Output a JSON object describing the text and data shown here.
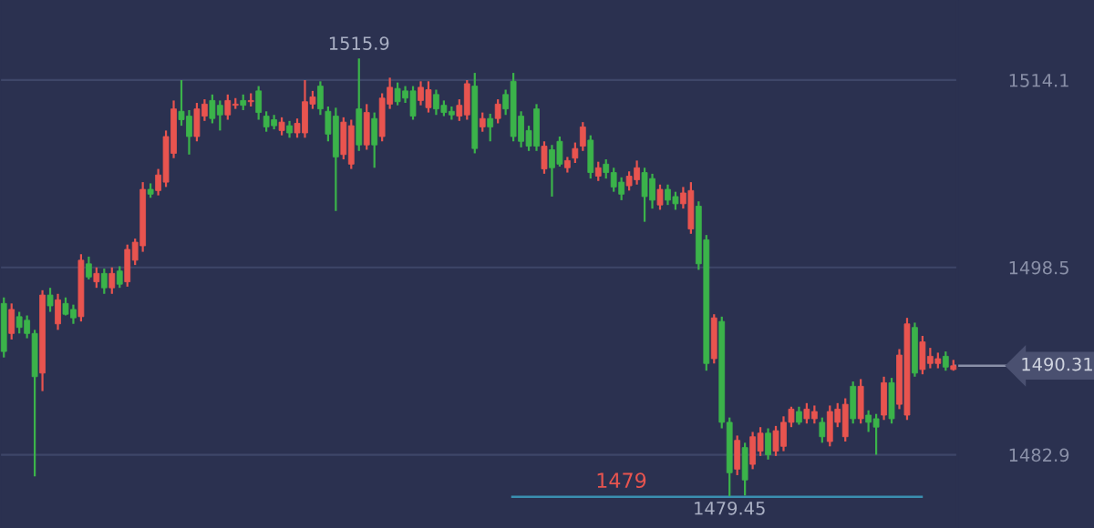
{
  "chart_data": {
    "type": "candlestick",
    "categories": [
      null,
      null,
      null,
      null,
      null,
      null,
      null,
      null,
      null,
      null,
      null,
      null,
      null,
      null,
      null,
      null,
      null,
      null,
      null,
      null,
      null,
      null,
      null,
      null,
      null,
      null,
      null,
      null,
      null,
      null,
      null,
      null,
      null,
      null,
      null,
      null,
      null,
      null,
      null,
      null,
      null,
      null,
      null,
      null,
      null,
      null,
      null,
      null,
      null,
      null,
      null,
      null,
      null,
      null,
      null,
      null,
      null,
      null,
      null,
      null,
      null,
      null,
      null,
      null,
      null,
      null,
      null,
      null,
      null,
      null,
      null,
      null,
      null,
      null,
      null,
      null,
      null,
      null,
      null,
      null,
      null,
      null,
      null,
      null,
      null,
      null,
      null,
      null,
      null,
      null,
      null,
      null,
      null,
      null,
      null,
      null,
      null,
      null,
      null,
      null,
      null,
      null,
      null,
      null,
      null,
      null,
      null,
      null,
      null,
      null,
      null,
      null,
      null,
      null,
      null,
      null,
      null,
      null,
      null,
      null,
      null,
      null,
      null,
      null
    ],
    "ohlc": [
      [
        1495.5,
        1496.0,
        1491.0,
        1491.5
      ],
      [
        1493.0,
        1495.5,
        1492.5,
        1495.0
      ],
      [
        1494.4,
        1494.8,
        1493.0,
        1493.5
      ],
      [
        1494.1,
        1494.5,
        1492.6,
        1493.0
      ],
      [
        1493.0,
        1493.3,
        1481.1,
        1489.4
      ],
      [
        1489.7,
        1496.6,
        1488.2,
        1496.2
      ],
      [
        1496.2,
        1496.8,
        1494.8,
        1495.3
      ],
      [
        1493.8,
        1496.3,
        1493.3,
        1495.8
      ],
      [
        1495.5,
        1496.0,
        1494.5,
        1494.6
      ],
      [
        1495.0,
        1495.4,
        1493.8,
        1494.3
      ],
      [
        1494.4,
        1499.6,
        1494.0,
        1499.1
      ],
      [
        1498.8,
        1499.4,
        1497.5,
        1497.7
      ],
      [
        1497.3,
        1498.5,
        1496.8,
        1498.0
      ],
      [
        1498.0,
        1498.4,
        1496.3,
        1496.8
      ],
      [
        1496.8,
        1498.5,
        1496.3,
        1498.0
      ],
      [
        1498.2,
        1498.6,
        1496.8,
        1497.1
      ],
      [
        1497.3,
        1500.4,
        1496.9,
        1500.0
      ],
      [
        1499.1,
        1500.9,
        1498.7,
        1500.6
      ],
      [
        1500.3,
        1505.6,
        1499.8,
        1505.0
      ],
      [
        1505.0,
        1505.5,
        1504.3,
        1504.6
      ],
      [
        1504.9,
        1506.7,
        1504.5,
        1506.2
      ],
      [
        1505.6,
        1509.9,
        1505.2,
        1509.4
      ],
      [
        1508.0,
        1512.4,
        1507.6,
        1511.7
      ],
      [
        1511.5,
        1514.1,
        1510.3,
        1510.8
      ],
      [
        1511.1,
        1511.6,
        1507.9,
        1509.4
      ],
      [
        1509.4,
        1512.2,
        1509.0,
        1511.7
      ],
      [
        1511.1,
        1512.5,
        1510.7,
        1512.1
      ],
      [
        1512.4,
        1512.9,
        1510.5,
        1510.9
      ],
      [
        1512.0,
        1512.4,
        1509.9,
        1511.2
      ],
      [
        1511.2,
        1512.9,
        1510.8,
        1512.4
      ],
      [
        1512.0,
        1512.6,
        1511.7,
        1512.1
      ],
      [
        1512.4,
        1512.9,
        1511.6,
        1512.0
      ],
      [
        1512.3,
        1513.0,
        1511.9,
        1512.4
      ],
      [
        1513.2,
        1513.6,
        1510.8,
        1511.4
      ],
      [
        1511.1,
        1511.5,
        1509.8,
        1510.2
      ],
      [
        1510.8,
        1511.2,
        1510.0,
        1510.3
      ],
      [
        1509.9,
        1511.0,
        1509.5,
        1510.6
      ],
      [
        1510.3,
        1510.7,
        1509.3,
        1509.7
      ],
      [
        1509.7,
        1510.9,
        1509.3,
        1510.5
      ],
      [
        1509.7,
        1514.1,
        1509.3,
        1512.3
      ],
      [
        1512.1,
        1513.2,
        1511.7,
        1512.7
      ],
      [
        1513.6,
        1514.0,
        1511.2,
        1511.7
      ],
      [
        1511.5,
        1511.9,
        1509.0,
        1509.6
      ],
      [
        1511.1,
        1511.8,
        1503.2,
        1507.7
      ],
      [
        1507.9,
        1511.0,
        1507.5,
        1510.6
      ],
      [
        1507.1,
        1510.8,
        1506.7,
        1510.3
      ],
      [
        1511.7,
        1515.9,
        1508.2,
        1508.7
      ],
      [
        1508.7,
        1512.1,
        1508.3,
        1511.4
      ],
      [
        1510.9,
        1511.4,
        1506.8,
        1508.7
      ],
      [
        1509.4,
        1513.0,
        1509.0,
        1512.6
      ],
      [
        1512.1,
        1514.3,
        1511.7,
        1513.5
      ],
      [
        1513.4,
        1513.9,
        1512.0,
        1512.3
      ],
      [
        1513.2,
        1513.6,
        1512.2,
        1512.6
      ],
      [
        1513.2,
        1513.6,
        1510.8,
        1511.1
      ],
      [
        1512.4,
        1514.0,
        1512.0,
        1513.5
      ],
      [
        1511.8,
        1514.0,
        1511.4,
        1513.3
      ],
      [
        1512.9,
        1513.3,
        1511.2,
        1511.7
      ],
      [
        1512.0,
        1512.4,
        1511.1,
        1511.4
      ],
      [
        1511.5,
        1511.9,
        1510.8,
        1511.2
      ],
      [
        1511.1,
        1512.5,
        1510.7,
        1512.0
      ],
      [
        1511.2,
        1514.1,
        1510.8,
        1513.8
      ],
      [
        1513.6,
        1514.7,
        1508.0,
        1508.4
      ],
      [
        1510.2,
        1511.4,
        1509.8,
        1510.9
      ],
      [
        1510.9,
        1511.3,
        1509.0,
        1510.2
      ],
      [
        1510.9,
        1512.5,
        1510.5,
        1512.1
      ],
      [
        1512.9,
        1513.3,
        1511.2,
        1511.7
      ],
      [
        1514.0,
        1514.7,
        1509.0,
        1509.4
      ],
      [
        1511.1,
        1511.5,
        1508.5,
        1509.0
      ],
      [
        1509.9,
        1510.3,
        1508.2,
        1508.6
      ],
      [
        1511.7,
        1512.1,
        1508.2,
        1508.6
      ],
      [
        1506.7,
        1509.0,
        1506.3,
        1508.6
      ],
      [
        1508.3,
        1508.7,
        1504.4,
        1506.8
      ],
      [
        1509.0,
        1509.4,
        1506.9,
        1507.1
      ],
      [
        1506.8,
        1507.7,
        1506.4,
        1507.4
      ],
      [
        1507.6,
        1508.9,
        1507.2,
        1508.4
      ],
      [
        1508.6,
        1510.6,
        1508.2,
        1510.2
      ],
      [
        1509.1,
        1509.5,
        1505.9,
        1506.4
      ],
      [
        1506.1,
        1507.3,
        1505.7,
        1506.8
      ],
      [
        1507.1,
        1507.5,
        1505.9,
        1506.4
      ],
      [
        1506.4,
        1506.8,
        1504.8,
        1505.2
      ],
      [
        1505.6,
        1506.0,
        1504.1,
        1504.6
      ],
      [
        1505.3,
        1506.5,
        1504.9,
        1506.1
      ],
      [
        1505.8,
        1507.4,
        1505.4,
        1506.8
      ],
      [
        1506.4,
        1506.8,
        1502.3,
        1504.4
      ],
      [
        1505.9,
        1506.3,
        1503.4,
        1504.1
      ],
      [
        1503.7,
        1505.4,
        1503.3,
        1505.0
      ],
      [
        1505.0,
        1505.4,
        1503.7,
        1504.1
      ],
      [
        1504.4,
        1504.8,
        1503.3,
        1503.8
      ],
      [
        1503.8,
        1505.2,
        1503.4,
        1504.7
      ],
      [
        1501.7,
        1505.6,
        1501.3,
        1504.9
      ],
      [
        1503.6,
        1504.0,
        1498.3,
        1498.8
      ],
      [
        1500.8,
        1501.2,
        1489.9,
        1490.5
      ],
      [
        1490.9,
        1494.6,
        1490.5,
        1494.3
      ],
      [
        1494.0,
        1494.4,
        1485.1,
        1485.6
      ],
      [
        1485.6,
        1486.0,
        1479.45,
        1481.4
      ],
      [
        1481.7,
        1484.5,
        1481.2,
        1484.1
      ],
      [
        1483.5,
        1483.9,
        1479.5,
        1480.8
      ],
      [
        1482.1,
        1484.8,
        1481.7,
        1484.4
      ],
      [
        1483.2,
        1485.2,
        1482.8,
        1484.7
      ],
      [
        1484.7,
        1485.1,
        1482.5,
        1482.9
      ],
      [
        1483.2,
        1485.3,
        1482.8,
        1484.9
      ],
      [
        1483.6,
        1486.1,
        1483.2,
        1485.6
      ],
      [
        1485.6,
        1486.9,
        1485.2,
        1486.7
      ],
      [
        1486.5,
        1486.9,
        1485.4,
        1485.6
      ],
      [
        1485.9,
        1487.2,
        1485.5,
        1486.7
      ],
      [
        1485.9,
        1487.0,
        1485.5,
        1486.5
      ],
      [
        1485.6,
        1486.0,
        1483.9,
        1484.4
      ],
      [
        1484.0,
        1487.0,
        1483.6,
        1486.5
      ],
      [
        1485.6,
        1487.2,
        1485.2,
        1486.7
      ],
      [
        1484.4,
        1487.6,
        1484.0,
        1487.1
      ],
      [
        1488.6,
        1489.0,
        1485.5,
        1485.9
      ],
      [
        1485.9,
        1489.2,
        1485.5,
        1488.6
      ],
      [
        1486.2,
        1486.6,
        1484.8,
        1485.6
      ],
      [
        1485.9,
        1486.3,
        1482.9,
        1485.2
      ],
      [
        1486.2,
        1489.4,
        1485.8,
        1488.9
      ],
      [
        1488.9,
        1489.3,
        1485.5,
        1485.9
      ],
      [
        1487.1,
        1491.7,
        1486.7,
        1491.2
      ],
      [
        1486.2,
        1494.3,
        1485.8,
        1493.8
      ],
      [
        1493.5,
        1493.9,
        1489.4,
        1489.7
      ],
      [
        1490.0,
        1492.8,
        1489.6,
        1492.3
      ],
      [
        1490.5,
        1491.8,
        1490.1,
        1491.1
      ],
      [
        1490.5,
        1491.4,
        1490.1,
        1490.9
      ],
      [
        1491.1,
        1491.5,
        1489.9,
        1490.2
      ],
      [
        1490.0,
        1490.8,
        1489.9,
        1490.31
      ]
    ],
    "colors": [
      "#3bb34a",
      "#e8544f",
      "#3bb34a",
      "#3bb34a",
      "#3bb34a",
      "#e8544f",
      "#3bb34a",
      "#e8544f",
      "#3bb34a",
      "#3bb34a",
      "#e8544f",
      "#3bb34a",
      "#e8544f",
      "#3bb34a",
      "#e8544f",
      "#3bb34a",
      "#e8544f",
      "#e8544f",
      "#e8544f",
      "#3bb34a",
      "#e8544f",
      "#e8544f",
      "#e8544f",
      "#3bb34a",
      "#3bb34a",
      "#e8544f",
      "#e8544f",
      "#3bb34a",
      "#3bb34a",
      "#e8544f",
      "#e8544f",
      "#3bb34a",
      "#e8544f",
      "#3bb34a",
      "#3bb34a",
      "#3bb34a",
      "#e8544f",
      "#3bb34a",
      "#e8544f",
      "#e8544f",
      "#e8544f",
      "#3bb34a",
      "#3bb34a",
      "#3bb34a",
      "#e8544f",
      "#e8544f",
      "#3bb34a",
      "#e8544f",
      "#3bb34a",
      "#e8544f",
      "#e8544f",
      "#3bb34a",
      "#3bb34a",
      "#3bb34a",
      "#e8544f",
      "#e8544f",
      "#3bb34a",
      "#3bb34a",
      "#3bb34a",
      "#e8544f",
      "#e8544f",
      "#3bb34a",
      "#e8544f",
      "#3bb34a",
      "#e8544f",
      "#3bb34a",
      "#3bb34a",
      "#3bb34a",
      "#3bb34a",
      "#3bb34a",
      "#e8544f",
      "#3bb34a",
      "#3bb34a",
      "#e8544f",
      "#e8544f",
      "#e8544f",
      "#3bb34a",
      "#e8544f",
      "#3bb34a",
      "#3bb34a",
      "#3bb34a",
      "#e8544f",
      "#e8544f",
      "#3bb34a",
      "#3bb34a",
      "#e8544f",
      "#3bb34a",
      "#3bb34a",
      "#e8544f",
      "#e8544f",
      "#3bb34a",
      "#3bb34a",
      "#e8544f",
      "#3bb34a",
      "#3bb34a",
      "#e8544f",
      "#3bb34a",
      "#e8544f",
      "#e8544f",
      "#3bb34a",
      "#e8544f",
      "#e8544f",
      "#e8544f",
      "#3bb34a",
      "#e8544f",
      "#e8544f",
      "#3bb34a",
      "#e8544f",
      "#e8544f",
      "#e8544f",
      "#3bb34a",
      "#e8544f",
      "#3bb34a",
      "#3bb34a",
      "#e8544f",
      "#3bb34a",
      "#e8544f",
      "#e8544f",
      "#3bb34a",
      "#e8544f",
      "#e8544f",
      "#e8544f",
      "#3bb34a",
      "#e8544f"
    ],
    "ylim": [
      1476.8,
      1520.77
    ],
    "yticks": [
      1482.9,
      1498.5,
      1514.1
    ],
    "grid": "y",
    "annotations": [
      {
        "text": "1515.9",
        "y": 1515.9
      },
      {
        "text": "1479.45",
        "y": 1479.45
      }
    ],
    "ref_lines": [
      {
        "axis": "y",
        "value": 1479.4,
        "label": "1479",
        "color": "#3a8fb0"
      },
      {
        "axis": "y",
        "value": 1490.31,
        "label": "1490.31",
        "color": "#8a90a8"
      }
    ]
  }
}
